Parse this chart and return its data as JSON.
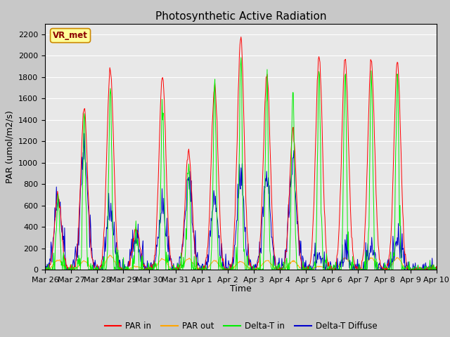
{
  "title": "Photosynthetic Active Radiation",
  "ylabel": "PAR (umol/m2/s)",
  "xlabel": "Time",
  "ylim": [
    0,
    2300
  ],
  "yticks": [
    0,
    200,
    400,
    600,
    800,
    1000,
    1200,
    1400,
    1600,
    1800,
    2000,
    2200
  ],
  "xtick_labels": [
    "Mar 26",
    "Mar 27",
    "Mar 28",
    "Mar 29",
    "Mar 30",
    "Mar 31",
    "Apr 1",
    "Apr 2",
    "Apr 3",
    "Apr 4",
    "Apr 5",
    "Apr 6",
    "Apr 7",
    "Apr 8",
    "Apr 9",
    "Apr 10"
  ],
  "annotation_text": "VR_met",
  "annotation_color": "#8B0000",
  "colors": {
    "PAR_in": "#FF0000",
    "PAR_out": "#FFA500",
    "Delta_T_in": "#00EE00",
    "Delta_T_Diffuse": "#0000CC"
  },
  "legend_labels": [
    "PAR in",
    "PAR out",
    "Delta-T in",
    "Delta-T Diffuse"
  ],
  "title_fontsize": 11,
  "label_fontsize": 9,
  "tick_fontsize": 8,
  "fig_facecolor": "#C8C8C8",
  "ax_facecolor": "#E8E8E8",
  "grid_color": "#FFFFFF"
}
